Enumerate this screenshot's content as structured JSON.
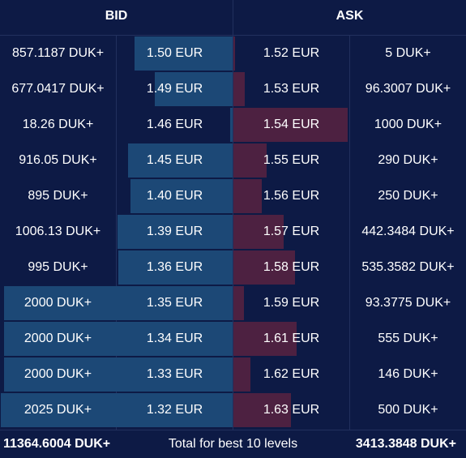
{
  "header": {
    "bid_label": "BID",
    "ask_label": "ASK"
  },
  "colors": {
    "background": "#0d1a45",
    "bid_bar": "#1c4876",
    "ask_bar": "#4d2141",
    "text": "#ffffff"
  },
  "max_level_qty": 2025,
  "bids": [
    {
      "qty_label": "857.1187 DUK+",
      "price_label": "1.50 EUR",
      "qty": 857.1187
    },
    {
      "qty_label": "677.0417 DUK+",
      "price_label": "1.49 EUR",
      "qty": 677.0417
    },
    {
      "qty_label": "18.26 DUK+",
      "price_label": "1.46 EUR",
      "qty": 18.26
    },
    {
      "qty_label": "916.05 DUK+",
      "price_label": "1.45 EUR",
      "qty": 916.05
    },
    {
      "qty_label": "895 DUK+",
      "price_label": "1.40 EUR",
      "qty": 895
    },
    {
      "qty_label": "1006.13 DUK+",
      "price_label": "1.39 EUR",
      "qty": 1006.13
    },
    {
      "qty_label": "995 DUK+",
      "price_label": "1.36 EUR",
      "qty": 995
    },
    {
      "qty_label": "2000 DUK+",
      "price_label": "1.35 EUR",
      "qty": 2000
    },
    {
      "qty_label": "2000 DUK+",
      "price_label": "1.34 EUR",
      "qty": 2000
    },
    {
      "qty_label": "2000 DUK+",
      "price_label": "1.33 EUR",
      "qty": 2000
    },
    {
      "qty_label": "2025 DUK+",
      "price_label": "1.32 EUR",
      "qty": 2025
    }
  ],
  "asks": [
    {
      "price_label": "1.52 EUR",
      "qty_label": "5 DUK+",
      "qty": 5
    },
    {
      "price_label": "1.53 EUR",
      "qty_label": "96.3007 DUK+",
      "qty": 96.3007
    },
    {
      "price_label": "1.54 EUR",
      "qty_label": "1000 DUK+",
      "qty": 1000
    },
    {
      "price_label": "1.55 EUR",
      "qty_label": "290 DUK+",
      "qty": 290
    },
    {
      "price_label": "1.56 EUR",
      "qty_label": "250 DUK+",
      "qty": 250
    },
    {
      "price_label": "1.57 EUR",
      "qty_label": "442.3484 DUK+",
      "qty": 442.3484
    },
    {
      "price_label": "1.58 EUR",
      "qty_label": "535.3582 DUK+",
      "qty": 535.3582
    },
    {
      "price_label": "1.59 EUR",
      "qty_label": "93.3775 DUK+",
      "qty": 93.3775
    },
    {
      "price_label": "1.61 EUR",
      "qty_label": "555 DUK+",
      "qty": 555
    },
    {
      "price_label": "1.62 EUR",
      "qty_label": "146 DUK+",
      "qty": 146
    },
    {
      "price_label": "1.63 EUR",
      "qty_label": "500 DUK+",
      "qty": 500
    }
  ],
  "footer": {
    "bid_total": "11364.6004 DUK+",
    "label": "Total for best 10 levels",
    "ask_total": "3413.3848 DUK+"
  }
}
